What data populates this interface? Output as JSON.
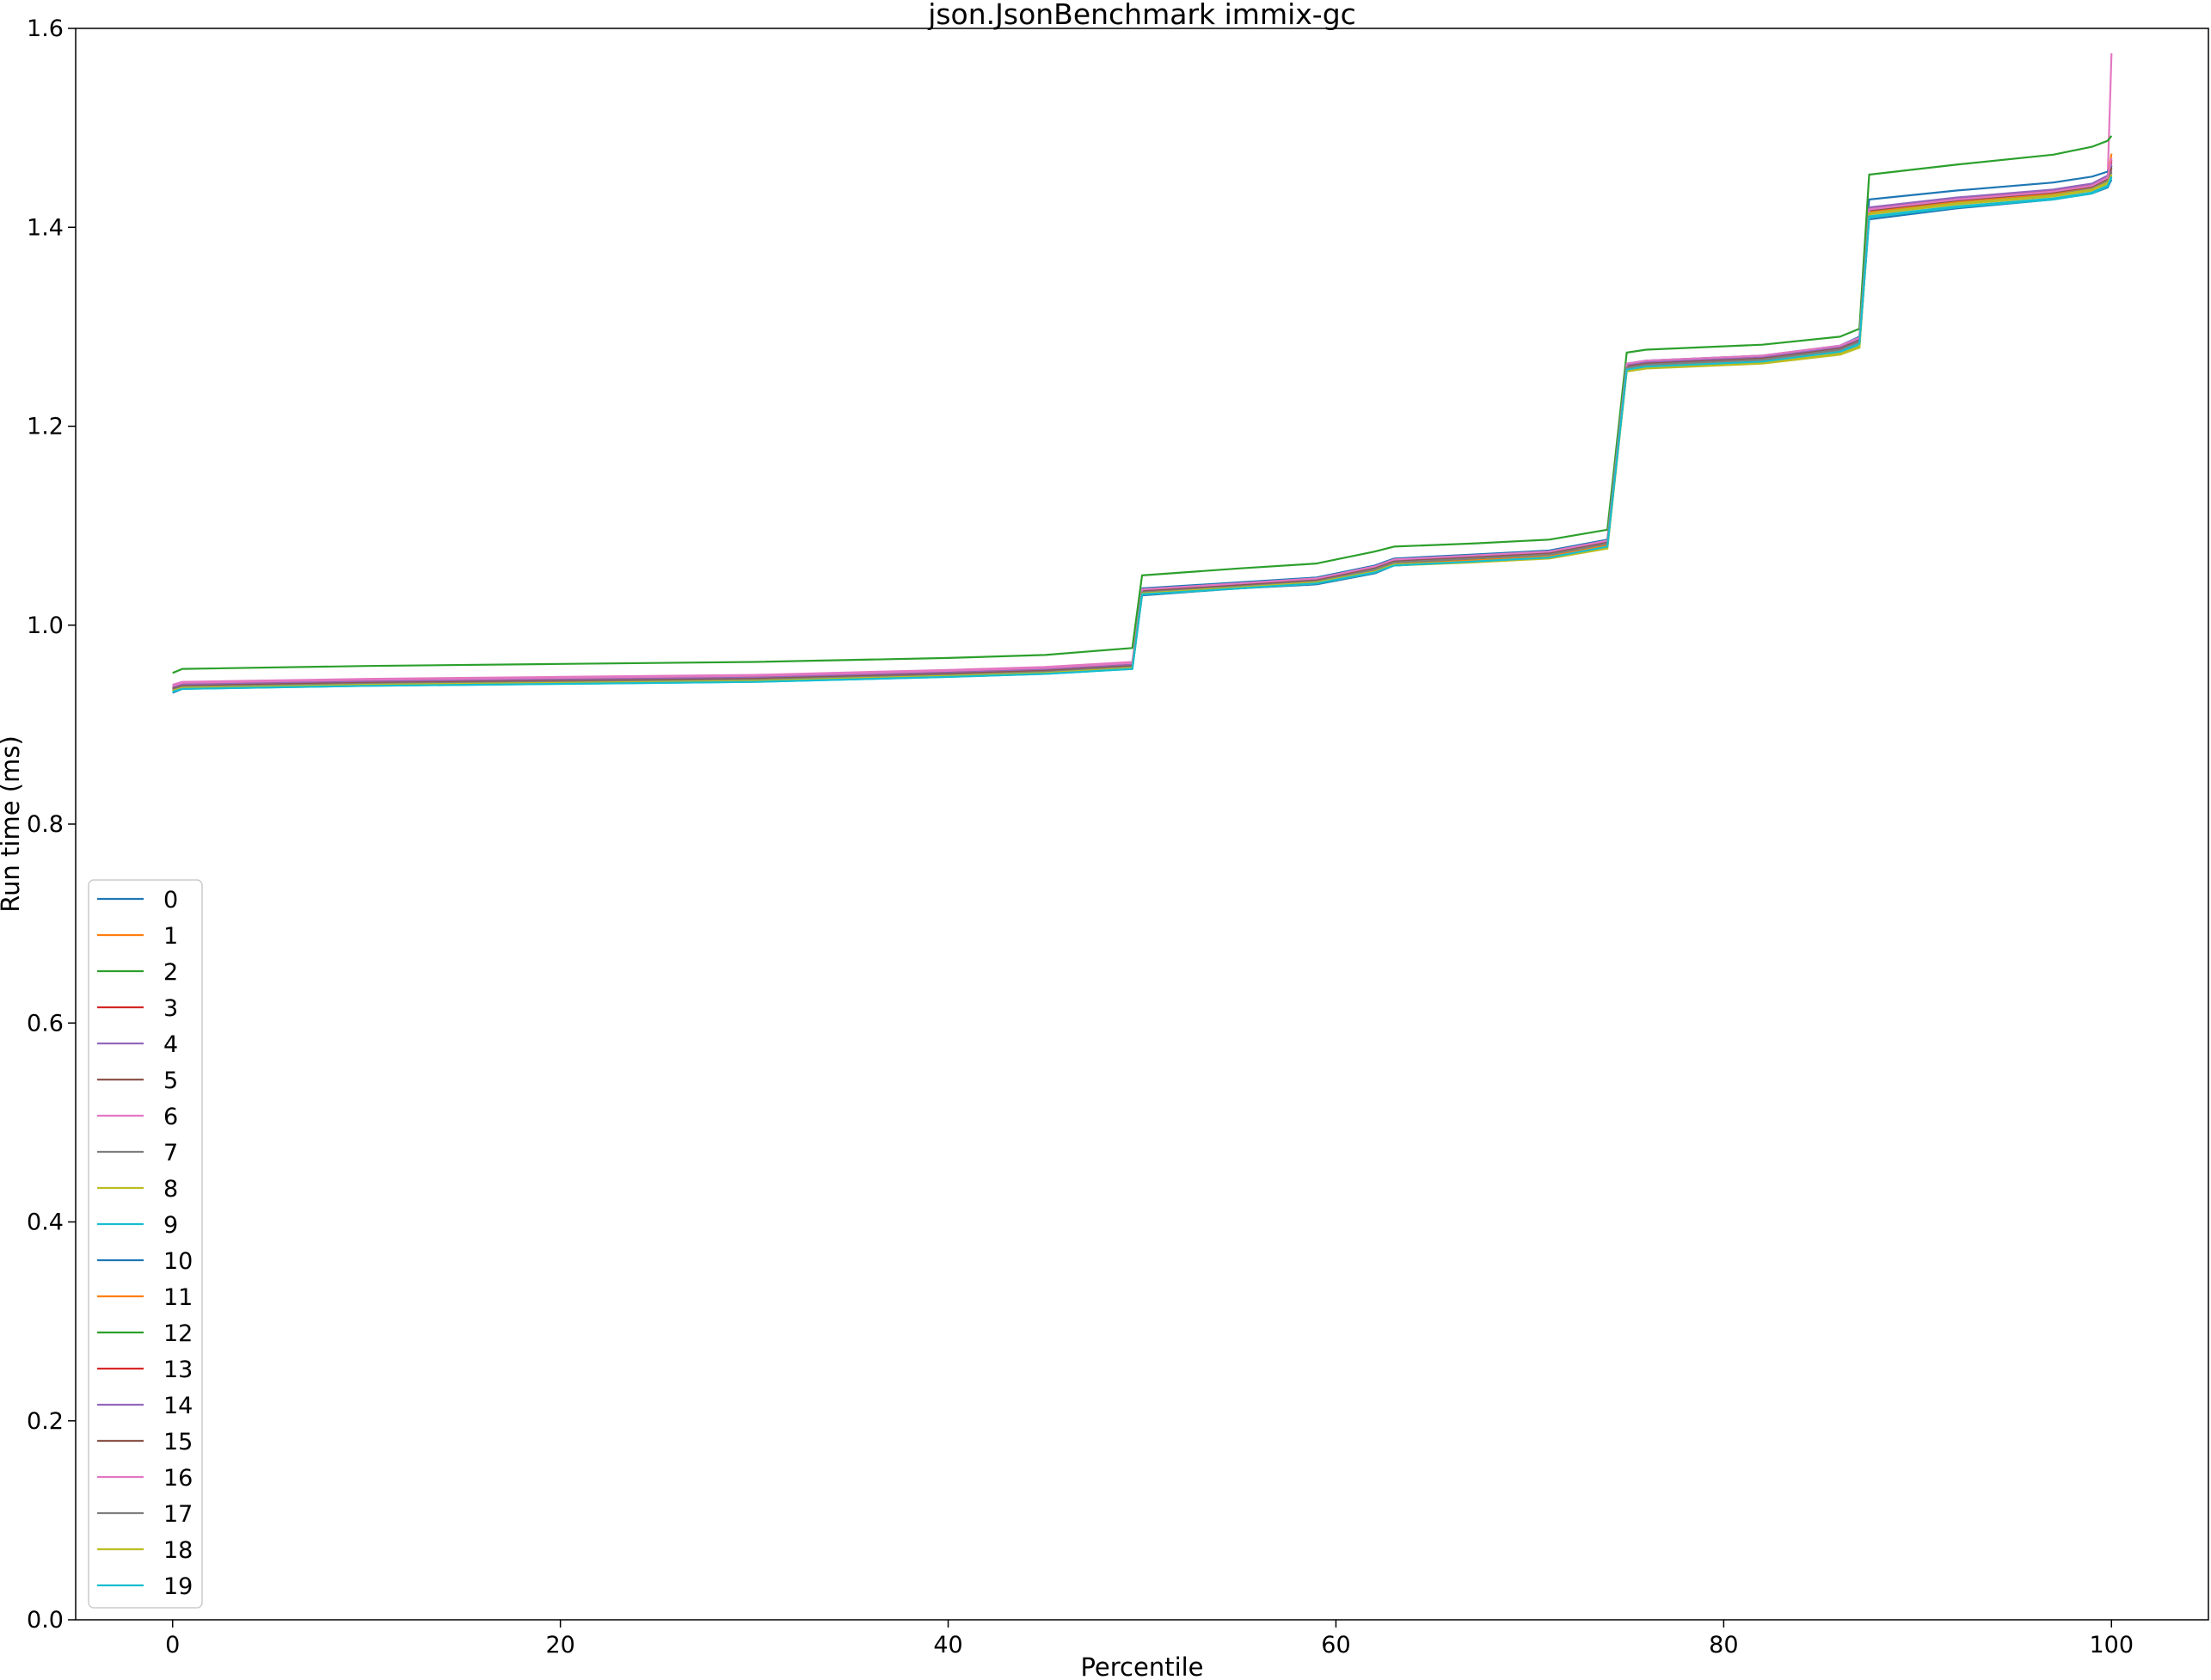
{
  "chart_data": {
    "type": "line",
    "title": "json.JsonBenchmark immix-gc",
    "xlabel": "Percentile",
    "ylabel": "Run time (ms)",
    "xlim": [
      -5,
      105
    ],
    "ylim": [
      0.0,
      1.6
    ],
    "xticks": [
      0,
      20,
      40,
      60,
      80,
      100
    ],
    "yticks": [
      0.0,
      0.2,
      0.4,
      0.6,
      0.8,
      1.0,
      1.2,
      1.4,
      1.6
    ],
    "grid": false,
    "legend_position": "lower-left",
    "x": [
      0,
      0.5,
      10,
      20,
      30,
      40,
      45,
      49.5,
      50,
      55,
      59,
      62,
      63,
      67,
      71,
      74,
      75,
      76,
      82,
      86,
      87,
      87.5,
      92,
      97,
      99,
      99.8,
      100
    ],
    "series": [
      {
        "name": "0",
        "color": "#1f77b4",
        "values": [
          0.932,
          0.936,
          0.94,
          0.942,
          0.944,
          0.949,
          0.952,
          0.956,
          1.03,
          1.037,
          1.041,
          1.052,
          1.06,
          1.064,
          1.068,
          1.079,
          1.256,
          1.259,
          1.265,
          1.274,
          1.282,
          1.408,
          1.419,
          1.428,
          1.434,
          1.44,
          1.448
        ]
      },
      {
        "name": "1",
        "color": "#ff7f0e",
        "values": [
          0.934,
          0.938,
          0.941,
          0.943,
          0.945,
          0.95,
          0.953,
          0.958,
          1.032,
          1.038,
          1.043,
          1.054,
          1.061,
          1.065,
          1.069,
          1.081,
          1.258,
          1.261,
          1.266,
          1.276,
          1.283,
          1.414,
          1.424,
          1.432,
          1.439,
          1.446,
          1.46
        ]
      },
      {
        "name": "2",
        "color": "#2ca02c",
        "values": [
          0.935,
          0.939,
          0.942,
          0.944,
          0.946,
          0.951,
          0.954,
          0.959,
          1.033,
          1.039,
          1.044,
          1.055,
          1.062,
          1.066,
          1.071,
          1.082,
          1.259,
          1.262,
          1.267,
          1.277,
          1.285,
          1.416,
          1.426,
          1.434,
          1.44,
          1.448,
          1.462
        ]
      },
      {
        "name": "3",
        "color": "#d62728",
        "values": [
          0.936,
          0.94,
          0.943,
          0.945,
          0.947,
          0.952,
          0.955,
          0.96,
          1.034,
          1.04,
          1.045,
          1.056,
          1.063,
          1.067,
          1.072,
          1.083,
          1.26,
          1.263,
          1.268,
          1.278,
          1.286,
          1.418,
          1.428,
          1.436,
          1.442,
          1.45,
          1.468
        ]
      },
      {
        "name": "4",
        "color": "#9467bd",
        "values": [
          0.937,
          0.94,
          0.943,
          0.945,
          0.948,
          0.953,
          0.956,
          0.961,
          1.035,
          1.041,
          1.046,
          1.058,
          1.065,
          1.069,
          1.073,
          1.084,
          1.261,
          1.264,
          1.269,
          1.279,
          1.287,
          1.415,
          1.425,
          1.433,
          1.439,
          1.447,
          1.458
        ]
      },
      {
        "name": "5",
        "color": "#8c564b",
        "values": [
          0.938,
          0.941,
          0.944,
          0.946,
          0.948,
          0.953,
          0.956,
          0.961,
          1.036,
          1.042,
          1.047,
          1.059,
          1.066,
          1.07,
          1.074,
          1.085,
          1.262,
          1.265,
          1.27,
          1.28,
          1.288,
          1.417,
          1.427,
          1.435,
          1.441,
          1.449,
          1.462
        ]
      },
      {
        "name": "6",
        "color": "#e377c2",
        "values": [
          0.94,
          0.943,
          0.946,
          0.948,
          0.95,
          0.955,
          0.958,
          0.963,
          1.036,
          1.042,
          1.047,
          1.058,
          1.065,
          1.069,
          1.073,
          1.084,
          1.262,
          1.265,
          1.27,
          1.28,
          1.288,
          1.416,
          1.426,
          1.434,
          1.44,
          1.448,
          1.575
        ]
      },
      {
        "name": "7",
        "color": "#7f7f7f",
        "values": [
          0.936,
          0.939,
          0.942,
          0.944,
          0.946,
          0.951,
          0.954,
          0.959,
          1.034,
          1.04,
          1.045,
          1.057,
          1.064,
          1.068,
          1.072,
          1.083,
          1.26,
          1.263,
          1.268,
          1.278,
          1.286,
          1.415,
          1.425,
          1.433,
          1.439,
          1.447,
          1.456
        ]
      },
      {
        "name": "8",
        "color": "#bcbd22",
        "values": [
          0.934,
          0.937,
          0.94,
          0.942,
          0.944,
          0.949,
          0.952,
          0.957,
          1.031,
          1.037,
          1.042,
          1.053,
          1.06,
          1.063,
          1.067,
          1.077,
          1.255,
          1.258,
          1.263,
          1.272,
          1.279,
          1.413,
          1.423,
          1.431,
          1.437,
          1.444,
          1.452
        ]
      },
      {
        "name": "9",
        "color": "#17becf",
        "values": [
          0.933,
          0.936,
          0.939,
          0.941,
          0.943,
          0.948,
          0.951,
          0.956,
          1.031,
          1.037,
          1.042,
          1.053,
          1.06,
          1.064,
          1.068,
          1.079,
          1.257,
          1.26,
          1.265,
          1.275,
          1.282,
          1.41,
          1.42,
          1.428,
          1.434,
          1.441,
          1.45
        ]
      },
      {
        "name": "10",
        "color": "#1f77b4",
        "values": [
          0.937,
          0.94,
          0.943,
          0.945,
          0.947,
          0.952,
          0.955,
          0.96,
          1.037,
          1.043,
          1.048,
          1.06,
          1.067,
          1.071,
          1.075,
          1.086,
          1.263,
          1.266,
          1.271,
          1.281,
          1.29,
          1.428,
          1.437,
          1.445,
          1.451,
          1.456,
          1.462
        ]
      },
      {
        "name": "11",
        "color": "#ff7f0e",
        "values": [
          0.935,
          0.938,
          0.941,
          0.943,
          0.945,
          0.95,
          0.953,
          0.958,
          1.032,
          1.038,
          1.043,
          1.054,
          1.061,
          1.065,
          1.069,
          1.08,
          1.258,
          1.261,
          1.266,
          1.276,
          1.283,
          1.416,
          1.426,
          1.434,
          1.441,
          1.449,
          1.474
        ]
      },
      {
        "name": "12",
        "color": "#2ca02c",
        "values": [
          0.952,
          0.956,
          0.959,
          0.961,
          0.963,
          0.967,
          0.97,
          0.977,
          1.05,
          1.057,
          1.062,
          1.074,
          1.079,
          1.082,
          1.086,
          1.096,
          1.274,
          1.277,
          1.282,
          1.29,
          1.298,
          1.453,
          1.463,
          1.473,
          1.481,
          1.487,
          1.492
        ]
      },
      {
        "name": "13",
        "color": "#d62728",
        "values": [
          0.936,
          0.939,
          0.942,
          0.944,
          0.946,
          0.951,
          0.954,
          0.959,
          1.034,
          1.04,
          1.045,
          1.057,
          1.064,
          1.068,
          1.072,
          1.083,
          1.26,
          1.263,
          1.268,
          1.278,
          1.286,
          1.419,
          1.429,
          1.437,
          1.443,
          1.451,
          1.466
        ]
      },
      {
        "name": "14",
        "color": "#9467bd",
        "values": [
          0.937,
          0.94,
          0.943,
          0.945,
          0.947,
          0.952,
          0.955,
          0.96,
          1.035,
          1.041,
          1.046,
          1.058,
          1.065,
          1.069,
          1.073,
          1.084,
          1.261,
          1.264,
          1.269,
          1.279,
          1.287,
          1.42,
          1.43,
          1.438,
          1.444,
          1.452,
          1.464
        ]
      },
      {
        "name": "15",
        "color": "#8c564b",
        "values": [
          0.936,
          0.939,
          0.942,
          0.944,
          0.946,
          0.951,
          0.954,
          0.959,
          1.034,
          1.04,
          1.045,
          1.057,
          1.064,
          1.068,
          1.072,
          1.083,
          1.26,
          1.263,
          1.268,
          1.278,
          1.286,
          1.417,
          1.427,
          1.435,
          1.441,
          1.449,
          1.46
        ]
      },
      {
        "name": "16",
        "color": "#e377c2",
        "values": [
          0.939,
          0.942,
          0.945,
          0.947,
          0.949,
          0.954,
          0.957,
          0.962,
          1.036,
          1.042,
          1.047,
          1.059,
          1.066,
          1.07,
          1.074,
          1.085,
          1.263,
          1.266,
          1.271,
          1.281,
          1.289,
          1.418,
          1.428,
          1.436,
          1.442,
          1.45,
          1.47
        ]
      },
      {
        "name": "17",
        "color": "#7f7f7f",
        "values": [
          0.935,
          0.938,
          0.941,
          0.943,
          0.945,
          0.95,
          0.953,
          0.958,
          1.033,
          1.039,
          1.044,
          1.056,
          1.063,
          1.067,
          1.071,
          1.082,
          1.259,
          1.262,
          1.267,
          1.277,
          1.285,
          1.414,
          1.424,
          1.432,
          1.438,
          1.446,
          1.455
        ]
      },
      {
        "name": "18",
        "color": "#bcbd22",
        "values": [
          0.934,
          0.937,
          0.94,
          0.942,
          0.944,
          0.949,
          0.952,
          0.957,
          1.032,
          1.038,
          1.043,
          1.054,
          1.061,
          1.064,
          1.068,
          1.078,
          1.256,
          1.259,
          1.264,
          1.273,
          1.28,
          1.414,
          1.424,
          1.432,
          1.438,
          1.445,
          1.453
        ]
      },
      {
        "name": "19",
        "color": "#17becf",
        "values": [
          0.933,
          0.936,
          0.939,
          0.941,
          0.943,
          0.948,
          0.951,
          0.956,
          1.031,
          1.037,
          1.042,
          1.053,
          1.06,
          1.064,
          1.068,
          1.079,
          1.257,
          1.26,
          1.265,
          1.275,
          1.283,
          1.411,
          1.421,
          1.429,
          1.435,
          1.442,
          1.451
        ]
      }
    ]
  }
}
